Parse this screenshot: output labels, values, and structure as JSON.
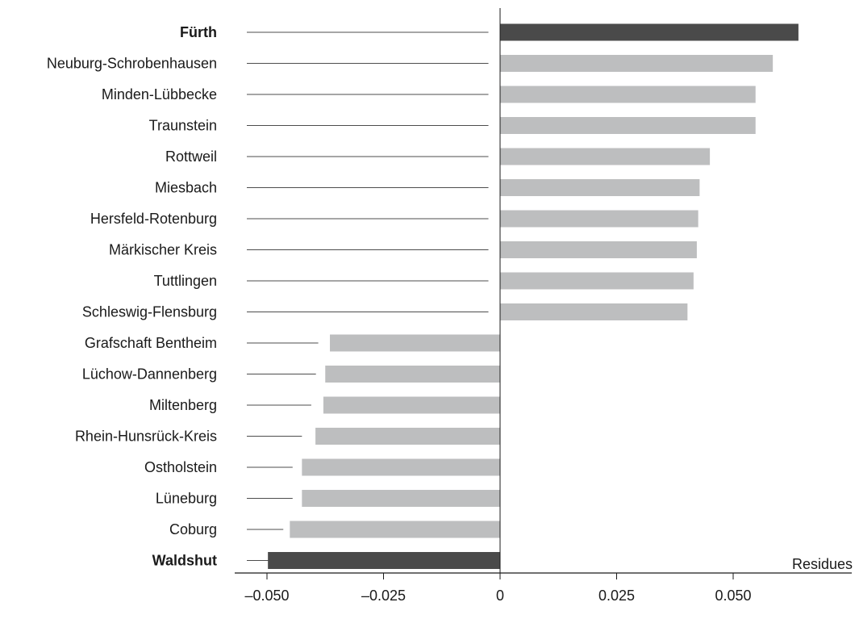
{
  "chart_data": {
    "type": "bar",
    "orientation": "horizontal",
    "categories": [
      "Fürth",
      "Neuburg-Schrobenhausen",
      "Minden-Lübbecke",
      "Traunstein",
      "Rottweil",
      "Miesbach",
      "Hersfeld-Rotenburg",
      "Märkischer Kreis",
      "Tuttlingen",
      "Schleswig-Flensburg",
      "Grafschaft Bentheim",
      "Lüchow-Dannenberg",
      "Miltenberg",
      "Rhein-Hunsrück-Kreis",
      "Ostholstein",
      "Lüneburg",
      "Coburg",
      "Waldshut"
    ],
    "highlighted": [
      "Fürth",
      "Waldshut"
    ],
    "values": [
      0.064,
      0.0585,
      0.0548,
      0.0548,
      0.045,
      0.0428,
      0.0425,
      0.0422,
      0.0415,
      0.0402,
      -0.0365,
      -0.0375,
      -0.0379,
      -0.0396,
      -0.0425,
      -0.0425,
      -0.0451,
      -0.0498
    ],
    "guide_end": [
      -0.0025,
      -0.0025,
      -0.0025,
      -0.0025,
      -0.0025,
      -0.0025,
      -0.0025,
      -0.0025,
      -0.0025,
      -0.0025,
      -0.039,
      -0.0395,
      -0.0405,
      -0.0425,
      -0.0445,
      -0.0445,
      -0.0465,
      -0.048
    ],
    "xlim": [
      -0.055,
      0.075
    ],
    "xticks": [
      -0.05,
      -0.025,
      0,
      0.025,
      0.05
    ],
    "xtick_labels": [
      "–0.050",
      "–0.025",
      "0",
      "0.025",
      "0.050"
    ],
    "xlabel": "Residues",
    "colors": {
      "bar": "#bdbebf",
      "highlight": "#4a4a4a",
      "axis": "#1a1a1a",
      "guide": "#4d4d4d"
    }
  }
}
